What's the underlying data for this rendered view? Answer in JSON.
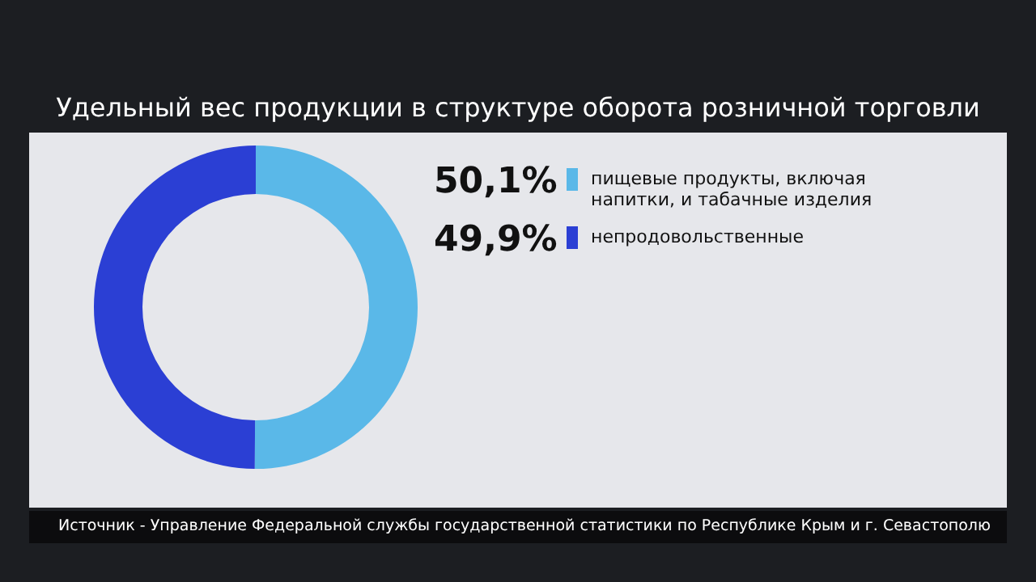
{
  "chart_data": {
    "type": "donut",
    "title": "Удельный вес продукции в структуре оборота розничной торговли",
    "categories": [
      "пищевые продукты, включая напитки, и табачные изделия",
      "непродовольственные"
    ],
    "values": [
      50.1,
      49.9
    ],
    "colors": [
      "#5ab8e8",
      "#2b3fd4"
    ],
    "value_labels": [
      "50,1%",
      "49,9%"
    ],
    "legend": "right",
    "annotations": [
      "Источник - Управление Федеральной службы государственной статистики по Республике Крым и г. Севастополю"
    ]
  }
}
